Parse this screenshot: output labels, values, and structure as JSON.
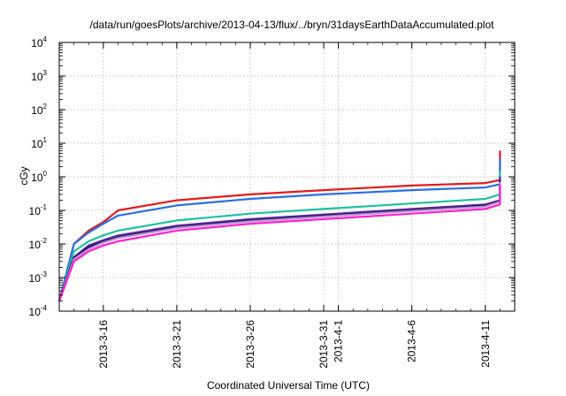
{
  "chart_data": {
    "type": "line",
    "title": "/data/run/goesPlots/archive/2013-04-13/flux/../bryn/31daysEarthDataAccumulated.plot",
    "xlabel": "Coordinated Universal Time (UTC)",
    "ylabel": "cGy",
    "y_scale": "log",
    "ylim": [
      0.0001,
      10000
    ],
    "y_ticks": [
      {
        "value": 0.0001,
        "base": "10",
        "exp": "-4"
      },
      {
        "value": 0.001,
        "base": "10",
        "exp": "-3"
      },
      {
        "value": 0.01,
        "base": "10",
        "exp": "-2"
      },
      {
        "value": 0.1,
        "base": "10",
        "exp": "-1"
      },
      {
        "value": 1,
        "base": "10",
        "exp": "0"
      },
      {
        "value": 10,
        "base": "10",
        "exp": "1"
      },
      {
        "value": 100,
        "base": "10",
        "exp": "2"
      },
      {
        "value": 1000,
        "base": "10",
        "exp": "3"
      },
      {
        "value": 10000,
        "base": "10",
        "exp": "4"
      }
    ],
    "xlim": [
      "2013-03-13",
      "2013-04-13"
    ],
    "x_ticks": [
      {
        "date": "2013-03-16",
        "label": "2013-3-16"
      },
      {
        "date": "2013-03-21",
        "label": "2013-3-21"
      },
      {
        "date": "2013-03-26",
        "label": "2013-3-26"
      },
      {
        "date": "2013-03-31",
        "label": "2013-3-31"
      },
      {
        "date": "2013-04-01",
        "label": "2013-4-1"
      },
      {
        "date": "2013-04-06",
        "label": "2013-4-6"
      },
      {
        "date": "2013-04-11",
        "label": "2013-4-11"
      }
    ],
    "grid": true,
    "series": [
      {
        "color": "#e41a1c",
        "x": [
          "2013-03-13",
          "2013-03-14",
          "2013-03-15",
          "2013-03-16",
          "2013-03-17",
          "2013-03-21",
          "2013-03-26",
          "2013-03-31",
          "2013-04-06",
          "2013-04-11",
          "2013-04-12",
          "2013-04-12"
        ],
        "values": [
          0.0002,
          0.01,
          0.025,
          0.045,
          0.1,
          0.2,
          0.3,
          0.4,
          0.55,
          0.65,
          0.8,
          6
        ]
      },
      {
        "color": "#2b6fe3",
        "x": [
          "2013-03-13",
          "2013-03-14",
          "2013-03-15",
          "2013-03-16",
          "2013-03-17",
          "2013-03-21",
          "2013-03-26",
          "2013-03-31",
          "2013-04-06",
          "2013-04-11",
          "2013-04-12",
          "2013-04-12"
        ],
        "values": [
          0.0002,
          0.01,
          0.022,
          0.04,
          0.07,
          0.14,
          0.22,
          0.3,
          0.4,
          0.48,
          0.6,
          3.5
        ]
      },
      {
        "color": "#20c0a0",
        "x": [
          "2013-03-13",
          "2013-03-14",
          "2013-03-15",
          "2013-03-16",
          "2013-03-17",
          "2013-03-21",
          "2013-03-26",
          "2013-03-31",
          "2013-04-06",
          "2013-04-11",
          "2013-04-12",
          "2013-04-12"
        ],
        "values": [
          0.0002,
          0.006,
          0.012,
          0.018,
          0.025,
          0.05,
          0.08,
          0.11,
          0.16,
          0.22,
          0.3,
          1.5
        ]
      },
      {
        "color": "#6a2ca0",
        "x": [
          "2013-03-13",
          "2013-03-14",
          "2013-03-15",
          "2013-03-16",
          "2013-03-17",
          "2013-03-21",
          "2013-03-26",
          "2013-03-31",
          "2013-04-06",
          "2013-04-11",
          "2013-04-12",
          "2013-04-12"
        ],
        "values": [
          0.0002,
          0.004,
          0.009,
          0.013,
          0.018,
          0.035,
          0.055,
          0.075,
          0.11,
          0.15,
          0.2,
          1.0
        ]
      },
      {
        "color": "#1a1a6e",
        "x": [
          "2013-03-13",
          "2013-03-14",
          "2013-03-15",
          "2013-03-16",
          "2013-03-17",
          "2013-03-21",
          "2013-03-26",
          "2013-03-31",
          "2013-04-06",
          "2013-04-11",
          "2013-04-12",
          "2013-04-12"
        ],
        "values": [
          0.0002,
          0.004,
          0.008,
          0.012,
          0.016,
          0.032,
          0.05,
          0.07,
          0.1,
          0.14,
          0.19,
          0.8
        ]
      },
      {
        "color": "#c090d0",
        "x": [
          "2013-03-13",
          "2013-03-14",
          "2013-03-15",
          "2013-03-16",
          "2013-03-17",
          "2013-03-21",
          "2013-03-26",
          "2013-03-31",
          "2013-04-06",
          "2013-04-11",
          "2013-04-12",
          "2013-04-12"
        ],
        "values": [
          0.0002,
          0.0035,
          0.007,
          0.011,
          0.015,
          0.03,
          0.047,
          0.065,
          0.095,
          0.13,
          0.18,
          0.7
        ]
      },
      {
        "color": "#ff20d0",
        "x": [
          "2013-03-13",
          "2013-03-14",
          "2013-03-15",
          "2013-03-16",
          "2013-03-17",
          "2013-03-21",
          "2013-03-26",
          "2013-03-31",
          "2013-04-06",
          "2013-04-11",
          "2013-04-12",
          "2013-04-12"
        ],
        "values": [
          0.0002,
          0.003,
          0.006,
          0.009,
          0.012,
          0.025,
          0.04,
          0.055,
          0.08,
          0.11,
          0.15,
          0.6
        ]
      }
    ]
  }
}
